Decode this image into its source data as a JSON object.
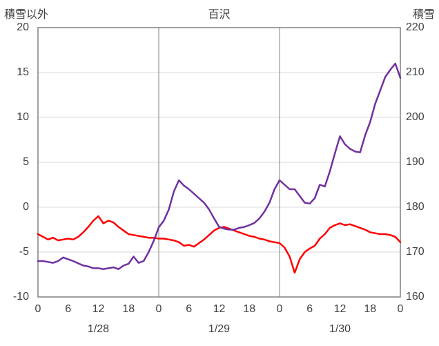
{
  "header": {
    "left_label": "積雪以外",
    "title": "百沢",
    "right_label": "積雪"
  },
  "colors": {
    "background": "#ffffff",
    "text": "#404040",
    "grid": "#d9d9d9",
    "border": "#808080",
    "separator": "#808080",
    "red_series": "#ff0000",
    "purple_series": "#7030a0"
  },
  "chart_data": {
    "type": "line",
    "title": "百沢",
    "x_axis": {
      "unit": "hour",
      "points_per_day": 24,
      "tick_interval_hours": 6,
      "tick_labels": [
        "0",
        "6",
        "12",
        "18",
        "0",
        "6",
        "12",
        "18",
        "0",
        "6",
        "12",
        "18",
        "0"
      ],
      "group_labels": [
        "1/28",
        "1/29",
        "1/30"
      ],
      "day_separator_hours": [
        24,
        48
      ]
    },
    "left_axis": {
      "label": "積雪以外",
      "min": -10,
      "max": 20,
      "step": 5,
      "ticks": [
        20,
        15,
        10,
        5,
        0,
        -5,
        -10
      ]
    },
    "right_axis": {
      "label": "積雪",
      "min": 160,
      "max": 220,
      "step": 10,
      "ticks": [
        220,
        210,
        200,
        190,
        180,
        170,
        160
      ]
    },
    "grid": true,
    "legend": "none",
    "series": [
      {
        "name": "積雪以外",
        "axis": "left",
        "color": "#ff0000",
        "values": [
          -3,
          -3.3,
          -3.6,
          -3.4,
          -3.7,
          -3.6,
          -3.5,
          -3.6,
          -3.3,
          -2.8,
          -2.2,
          -1.5,
          -1,
          -1.8,
          -1.5,
          -1.7,
          -2.2,
          -2.6,
          -3,
          -3.1,
          -3.2,
          -3.3,
          -3.4,
          -3.4,
          -3.5,
          -3.5,
          -3.6,
          -3.7,
          -3.9,
          -4.3,
          -4.2,
          -4.4,
          -4,
          -3.6,
          -3.1,
          -2.6,
          -2.3,
          -2.2,
          -2.4,
          -2.6,
          -2.8,
          -3,
          -3.2,
          -3.3,
          -3.5,
          -3.6,
          -3.8,
          -3.9,
          -4,
          -4.5,
          -5.5,
          -7.3,
          -5.8,
          -5,
          -4.6,
          -4.3,
          -3.5,
          -3,
          -2.3,
          -2,
          -1.8,
          -2,
          -1.9,
          -2.1,
          -2.3,
          -2.5,
          -2.8,
          -2.9,
          -3,
          -3,
          -3.1,
          -3.3,
          -3.9
        ]
      },
      {
        "name": "積雪",
        "axis": "right",
        "color": "#7030a0",
        "values": [
          168,
          168,
          167.8,
          167.6,
          168,
          168.8,
          168.4,
          168,
          167.5,
          167,
          166.8,
          166.4,
          166.4,
          166.2,
          166.4,
          166.6,
          166.2,
          167,
          167.4,
          169,
          167.6,
          168,
          170,
          172.5,
          175.5,
          177,
          179.5,
          183.5,
          186,
          184.8,
          184,
          183,
          182,
          181,
          179.5,
          177.5,
          175.6,
          175.2,
          175,
          175,
          175.4,
          175.6,
          176,
          176.5,
          177.5,
          179,
          181,
          184,
          186,
          185,
          184,
          184,
          182.5,
          181,
          180.8,
          182,
          185,
          184.6,
          188,
          192,
          195.8,
          194,
          193,
          192.4,
          192.2,
          196,
          199,
          203,
          206,
          209,
          210.6,
          212,
          208.8
        ]
      }
    ]
  }
}
